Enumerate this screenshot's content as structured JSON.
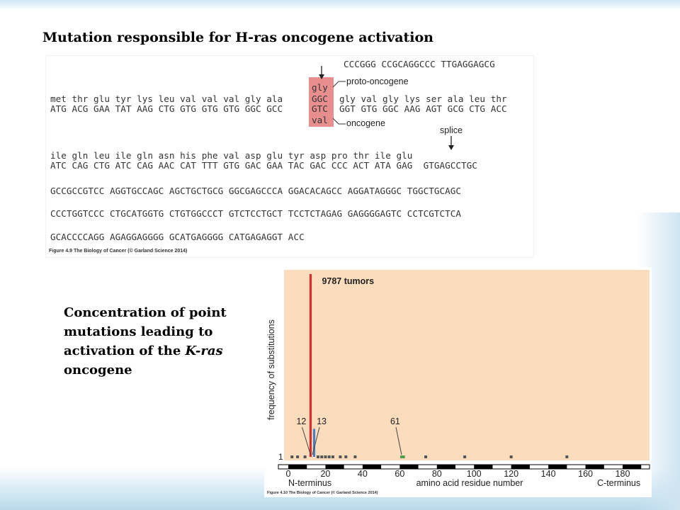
{
  "slide": {
    "title": "Mutation responsible for H-ras oncogene activation",
    "side_text": {
      "line1": "Concentration of point",
      "line2": "mutations leading to",
      "line3_prefix": "activation of the ",
      "line3_italic": "K-ras",
      "line4": "oncogene"
    }
  },
  "dna_figure": {
    "top_seq": "CCCGGG CCGCAGGCCC TTGAGGAGCG",
    "codon_top": "gly",
    "codon_wt": "GGC",
    "codon_mut": "GTC",
    "codon_bottom": "val",
    "label_proto": "proto-oncogene",
    "label_onco": "oncogene",
    "label_splice": "splice",
    "aa_line1_left": "met thr glu tyr lys leu val val val gly ala",
    "aa_line1_right": "gly val gly lys ser ala leu thr",
    "nt_line1_left": "ATG ACG GAA TAT AAG CTG GTG GTG GTG GGC GCC",
    "nt_line1_right": "GGT GTG GGC AAG AGT GCG CTG ACC",
    "aa_line2": "ile gln leu ile gln asn his phe val asp glu tyr asp pro thr ile glu",
    "nt_line2": "ATC CAG CTG ATC CAG AAC CAT TTT GTG GAC GAA TAC GAC CCC ACT ATA GAG  GTGAGCCTGC",
    "seq3": "GCCGCCGTCC AGGTGCCAGC AGCTGCTGCG GGCGAGCCCA GGACACAGCC AGGATAGGGC TGGCTGCAGC",
    "seq4": "CCCTGGTCCC CTGCATGGTG CTGTGGCCCT GTCTCCTGCT TCCTCTAGAG GAGGGGAGTC CCTCGTCTCA",
    "seq5": "GCACCCCAGG AGAGGAGGGG GCATGAGGGG CATGAGAGGT ACC",
    "caption": "Figure 4.9 The Biology of Cancer (© Garland Science 2014)"
  },
  "chart_data": {
    "type": "bar",
    "title": "",
    "annotation_top": "9787 tumors",
    "xlabel": "amino acid residue number",
    "ylabel": "frequency of substitutions",
    "x_left_label": "N-terminus",
    "x_right_label": "C-terminus",
    "xlim": [
      0,
      189
    ],
    "x_ticks": [
      0,
      20,
      40,
      60,
      80,
      100,
      120,
      140,
      160,
      180
    ],
    "y_tick_label": "1",
    "callouts": [
      "12",
      "13",
      "61"
    ],
    "bars": [
      {
        "residue": 12,
        "value": 9787,
        "color": "#d32f2f"
      },
      {
        "residue": 13,
        "value": 1500,
        "color": "#4a7fc1"
      }
    ],
    "minor_points_residues": [
      2,
      5,
      9,
      16,
      18,
      20,
      22,
      24,
      28,
      31,
      36,
      61,
      62,
      74,
      95,
      120,
      150
    ],
    "minor_point_value": 1,
    "colors": {
      "background": "#fbdcbd",
      "major": "#d32f2f",
      "secondary": "#4a7fc1",
      "green": "#4ea04e",
      "minor": "#555555"
    },
    "caption": "Figure 4.10 The Biology of Cancer (© Garland Science 2014)"
  }
}
